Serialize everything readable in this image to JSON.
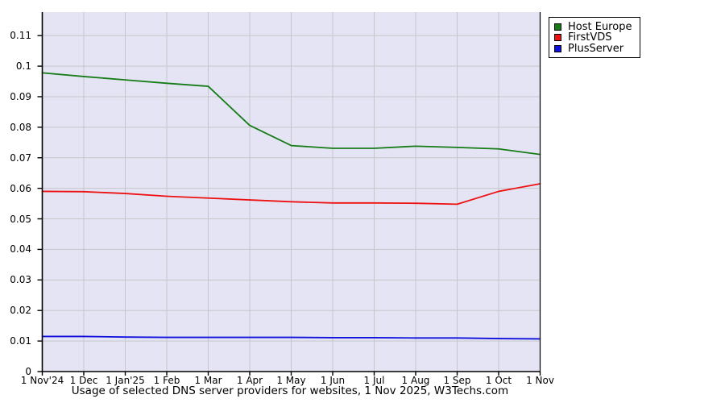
{
  "chart_data": {
    "type": "line",
    "title": "Usage of selected DNS server providers for websites, 1 Nov 2025, W3Techs.com",
    "categories": [
      "1 Nov'24",
      "1 Dec",
      "1 Jan'25",
      "1 Feb",
      "1 Mar",
      "1 Apr",
      "1 May",
      "1 Jun",
      "1 Jul",
      "1 Aug",
      "1 Sep",
      "1 Oct",
      "1 Nov"
    ],
    "series": [
      {
        "name": "Host Europe",
        "color": "#167c16",
        "values": [
          0.0978,
          0.0966,
          0.0955,
          0.0944,
          0.0934,
          0.0806,
          0.074,
          0.0731,
          0.0731,
          0.0738,
          0.0734,
          0.0729,
          0.0711
        ]
      },
      {
        "name": "FirstVDS",
        "color": "#ee1111",
        "values": [
          0.059,
          0.0589,
          0.0583,
          0.0574,
          0.0568,
          0.0562,
          0.0556,
          0.0552,
          0.0552,
          0.0551,
          0.0548,
          0.059,
          0.0615
        ]
      },
      {
        "name": "PlusServer",
        "color": "#1010dd",
        "values": [
          0.0115,
          0.0115,
          0.0113,
          0.0112,
          0.0112,
          0.0112,
          0.0112,
          0.0111,
          0.0111,
          0.011,
          0.011,
          0.0108,
          0.0107
        ]
      }
    ],
    "y_ticks": [
      0,
      0.01,
      0.02,
      0.03,
      0.04,
      0.05,
      0.06,
      0.07,
      0.08,
      0.09,
      0.1,
      0.11
    ],
    "y_tick_labels": [
      "0",
      "0.01",
      "0.02",
      "0.03",
      "0.04",
      "0.05",
      "0.06",
      "0.07",
      "0.08",
      "0.09",
      "0.1",
      "0.11"
    ],
    "ylim": [
      0,
      0.1177
    ],
    "xlabel": "",
    "ylabel": "",
    "grid": true,
    "legend_position": "top-right",
    "colors": {
      "plot_background": "#e4e4f5",
      "grid_line": "#c6c6c9",
      "axis_line": "#000000",
      "page_background": "#ffffff"
    }
  }
}
